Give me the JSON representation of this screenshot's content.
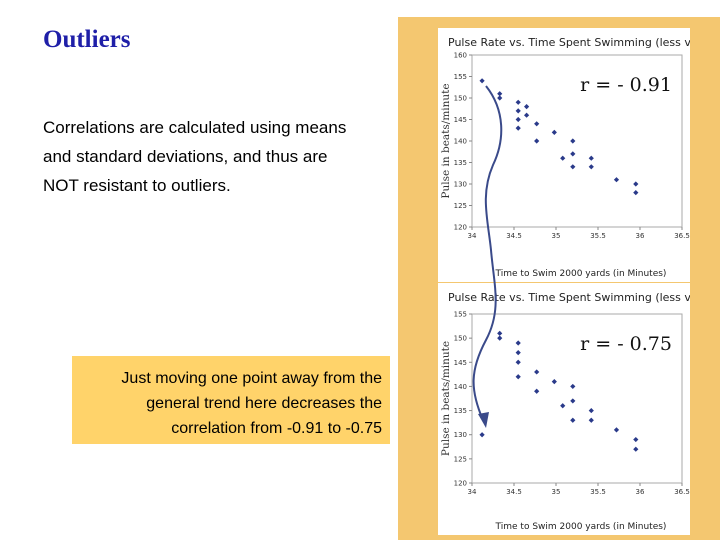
{
  "slide": {
    "title": "Outliers",
    "body": "Correlations are calculated using means and standard deviations, and thus are NOT resistant to outliers.",
    "callout": "Just moving one point away from the general trend here decreases the correlation from -0.91 to -0.75"
  },
  "colors": {
    "title": "#1f1fa8",
    "callout_bg": "#ffd36a",
    "panel_bg": "#f4c770",
    "points": "#2a3a8a"
  },
  "chart_data": [
    {
      "type": "scatter",
      "title": "Pulse Rate vs. Time Spent Swimming (less variation)",
      "xlabel": "Time to Swim 2000 yards (in Minutes)",
      "ylabel": "Pulse in beats/minute",
      "xlim": [
        34,
        36.5
      ],
      "ylim": [
        120,
        160
      ],
      "xticks": [
        "34",
        "34.5",
        "35",
        "35.5",
        "36",
        "36.5"
      ],
      "yticks": [
        "120",
        "125",
        "130",
        "135",
        "140",
        "145",
        "150",
        "155",
        "160"
      ],
      "annotation": "r = - 0.91",
      "points": [
        {
          "x": 34.12,
          "y": 154
        },
        {
          "x": 34.33,
          "y": 150
        },
        {
          "x": 34.33,
          "y": 151
        },
        {
          "x": 34.55,
          "y": 149
        },
        {
          "x": 34.55,
          "y": 147
        },
        {
          "x": 34.55,
          "y": 145
        },
        {
          "x": 34.55,
          "y": 143
        },
        {
          "x": 34.65,
          "y": 148
        },
        {
          "x": 34.65,
          "y": 146
        },
        {
          "x": 34.77,
          "y": 144
        },
        {
          "x": 34.77,
          "y": 140
        },
        {
          "x": 34.98,
          "y": 142
        },
        {
          "x": 35.08,
          "y": 136
        },
        {
          "x": 35.2,
          "y": 140
        },
        {
          "x": 35.2,
          "y": 137
        },
        {
          "x": 35.2,
          "y": 134
        },
        {
          "x": 35.42,
          "y": 136
        },
        {
          "x": 35.42,
          "y": 134
        },
        {
          "x": 35.72,
          "y": 131
        },
        {
          "x": 35.95,
          "y": 130
        },
        {
          "x": 35.95,
          "y": 128
        }
      ]
    },
    {
      "type": "scatter",
      "title": "Pulse Rate vs. Time Spent Swimming (less variation)",
      "xlabel": "Time to Swim 2000 yards (in Minutes)",
      "ylabel": "Pulse in beats/minute",
      "xlim": [
        34,
        36.5
      ],
      "ylim": [
        120,
        155
      ],
      "xticks": [
        "34",
        "34.5",
        "35",
        "35.5",
        "36",
        "36.5"
      ],
      "yticks": [
        "120",
        "125",
        "130",
        "135",
        "140",
        "145",
        "150",
        "155"
      ],
      "annotation": "r = - 0.75",
      "points": [
        {
          "x": 34.12,
          "y": 130
        },
        {
          "x": 34.33,
          "y": 151
        },
        {
          "x": 34.33,
          "y": 150
        },
        {
          "x": 34.55,
          "y": 149
        },
        {
          "x": 34.55,
          "y": 147
        },
        {
          "x": 34.55,
          "y": 145
        },
        {
          "x": 34.55,
          "y": 142
        },
        {
          "x": 34.77,
          "y": 143
        },
        {
          "x": 34.77,
          "y": 139
        },
        {
          "x": 34.98,
          "y": 141
        },
        {
          "x": 35.08,
          "y": 136
        },
        {
          "x": 35.2,
          "y": 140
        },
        {
          "x": 35.2,
          "y": 137
        },
        {
          "x": 35.2,
          "y": 133
        },
        {
          "x": 35.42,
          "y": 135
        },
        {
          "x": 35.42,
          "y": 133
        },
        {
          "x": 35.72,
          "y": 131
        },
        {
          "x": 35.95,
          "y": 129
        },
        {
          "x": 35.95,
          "y": 127
        }
      ]
    }
  ]
}
